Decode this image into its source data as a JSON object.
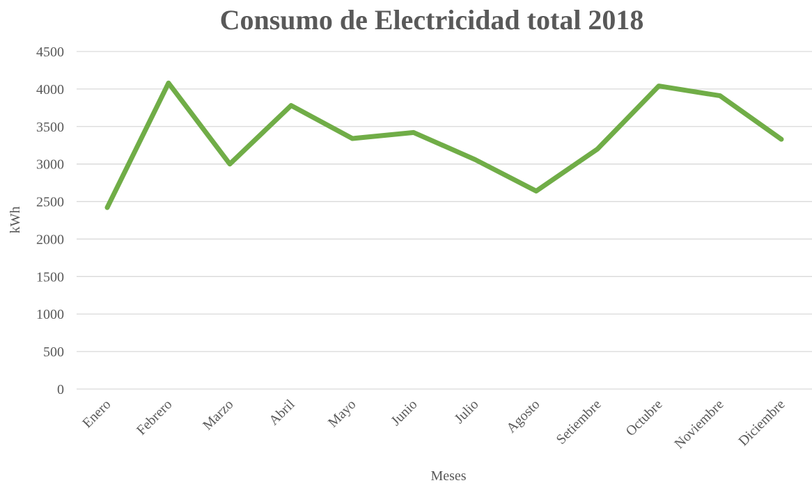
{
  "chart_data": {
    "type": "line",
    "title": "Consumo de Electricidad total 2018",
    "xlabel": "Meses",
    "ylabel": "kWh",
    "ylim": [
      0,
      4500
    ],
    "yticks": [
      "0",
      "500",
      "1000",
      "1500",
      "2000",
      "2500",
      "3000",
      "3500",
      "4000",
      "4500"
    ],
    "grid": true,
    "categories": [
      "Enero",
      "Febrero",
      "Marzo",
      "Abril",
      "Mayo",
      "Junio",
      "Julio",
      "Agosto",
      "Setiembre",
      "Octubre",
      "Noviembre",
      "Diciembre"
    ],
    "series": [
      {
        "values": [
          2420,
          4080,
          3000,
          3780,
          3340,
          3420,
          3060,
          2640,
          3200,
          4040,
          3910,
          3330
        ],
        "color": "#70ad47"
      }
    ]
  }
}
